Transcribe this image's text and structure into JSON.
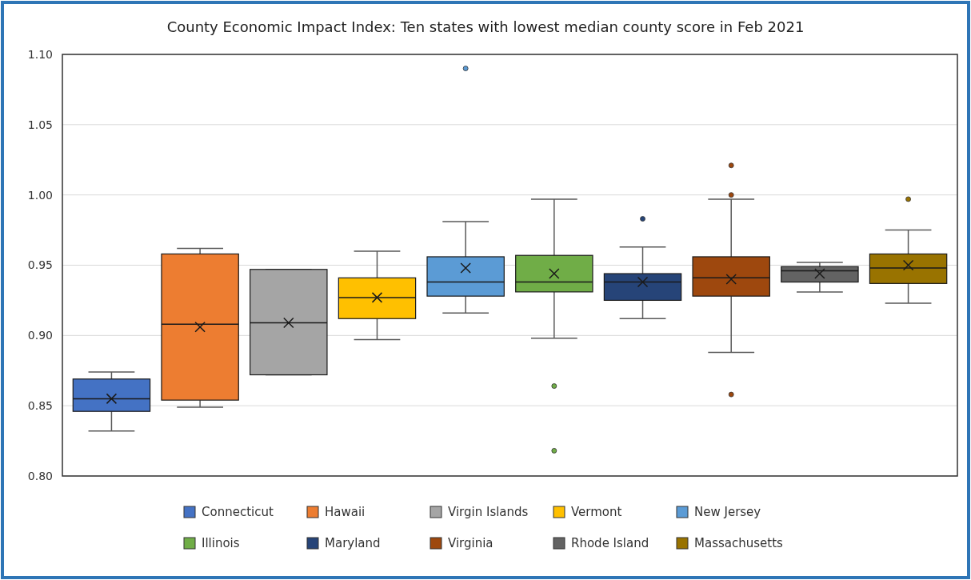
{
  "chart_data": {
    "type": "box",
    "title": "County Economic Impact Index: Ten states with lowest median county score in Feb 2021",
    "categories": [
      null
    ],
    "ylim": [
      0.8,
      1.1
    ],
    "yticks": [
      {
        "value": 0.8,
        "label": "0.80"
      },
      {
        "value": 0.85,
        "label": "0.85"
      },
      {
        "value": 0.9,
        "label": "0.90"
      },
      {
        "value": 0.95,
        "label": "0.95"
      },
      {
        "value": 1.0,
        "label": "1.00"
      },
      {
        "value": 1.05,
        "label": "1.05"
      },
      {
        "value": 1.1,
        "label": "1.10"
      }
    ],
    "grid": "y",
    "legend": "bottom",
    "series": [
      {
        "name": "Connecticut",
        "color": "#4472c4",
        "boxes": [
          {
            "low": 0.832,
            "q1": 0.846,
            "median": 0.855,
            "q3": 0.869,
            "high": 0.874,
            "mean": 0.855
          }
        ]
      },
      {
        "name": "Hawaii",
        "color": "#ed7d31",
        "boxes": [
          {
            "low": 0.849,
            "q1": 0.854,
            "median": 0.908,
            "q3": 0.958,
            "high": 0.962,
            "mean": 0.906
          }
        ]
      },
      {
        "name": "Virgin Islands",
        "color": "#a5a5a5",
        "boxes": [
          {
            "low": 0.872,
            "q1": 0.872,
            "median": 0.909,
            "q3": 0.947,
            "high": 0.947,
            "mean": 0.909
          }
        ]
      },
      {
        "name": "Vermont",
        "color": "#ffc000",
        "boxes": [
          {
            "low": 0.897,
            "q1": 0.912,
            "median": 0.927,
            "q3": 0.941,
            "high": 0.96,
            "mean": 0.927
          }
        ]
      },
      {
        "name": "New Jersey",
        "color": "#5b9bd5",
        "boxes": [
          {
            "low": 0.916,
            "q1": 0.928,
            "median": 0.938,
            "q3": 0.956,
            "high": 0.981,
            "mean": 0.948,
            "outliers": [
              1.09
            ]
          }
        ]
      },
      {
        "name": "Illinois",
        "color": "#70ad47",
        "boxes": [
          {
            "low": 0.898,
            "q1": 0.931,
            "median": 0.938,
            "q3": 0.957,
            "high": 0.997,
            "mean": 0.944,
            "outliers": [
              0.864,
              0.818
            ]
          }
        ]
      },
      {
        "name": "Maryland",
        "color": "#264478",
        "boxes": [
          {
            "low": 0.912,
            "q1": 0.925,
            "median": 0.938,
            "q3": 0.944,
            "high": 0.963,
            "mean": 0.938,
            "outliers": [
              0.983
            ]
          }
        ]
      },
      {
        "name": "Virginia",
        "color": "#9e480e",
        "boxes": [
          {
            "low": 0.888,
            "q1": 0.928,
            "median": 0.941,
            "q3": 0.956,
            "high": 0.997,
            "mean": 0.94,
            "outliers": [
              1.021,
              1.0,
              0.858
            ]
          }
        ]
      },
      {
        "name": "Rhode Island",
        "color": "#636363",
        "boxes": [
          {
            "low": 0.931,
            "q1": 0.938,
            "median": 0.946,
            "q3": 0.949,
            "high": 0.952,
            "mean": 0.944
          }
        ]
      },
      {
        "name": "Massachusetts",
        "color": "#997300",
        "boxes": [
          {
            "low": 0.923,
            "q1": 0.937,
            "median": 0.948,
            "q3": 0.958,
            "high": 0.975,
            "mean": 0.95,
            "outliers": [
              0.997
            ]
          }
        ]
      }
    ]
  }
}
